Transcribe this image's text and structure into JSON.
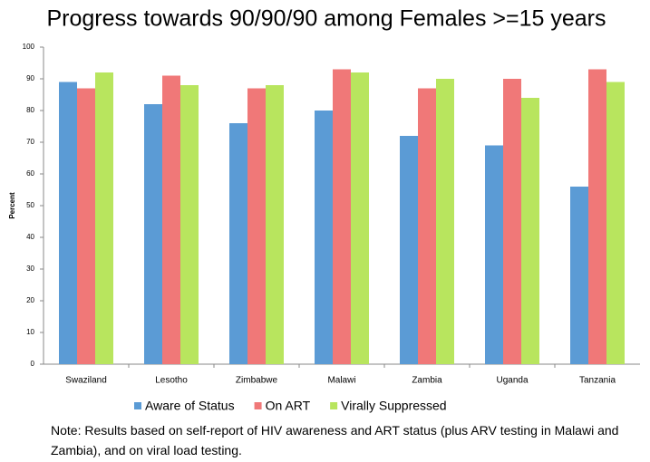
{
  "chart_data": {
    "type": "bar",
    "title": "Progress towards 90/90/90 among Females >=15 years",
    "y_label": "Percent",
    "categories": [
      "Swaziland",
      "Lesotho",
      "Zimbabwe",
      "Malawi",
      "Zambia",
      "Uganda",
      "Tanzania"
    ],
    "series": [
      {
        "name": "Aware of Status",
        "color": "#5b9bd5",
        "values": [
          89,
          82,
          76,
          80,
          72,
          69,
          56
        ]
      },
      {
        "name": "On ART",
        "color": "#f07878",
        "values": [
          87,
          91,
          87,
          93,
          87,
          90,
          93
        ]
      },
      {
        "name": "Virally Suppressed",
        "color": "#b8e55e",
        "values": [
          92,
          88,
          88,
          92,
          90,
          84,
          89
        ]
      }
    ],
    "ylim": [
      0,
      100
    ],
    "yticks": [
      0,
      10,
      20,
      30,
      40,
      50,
      60,
      70,
      80,
      90,
      100
    ],
    "legend": "bottom",
    "note": "Note: Results based on self-report of HIV awareness and ART status (plus ARV testing in Malawi and Zambia), and on viral load testing."
  }
}
